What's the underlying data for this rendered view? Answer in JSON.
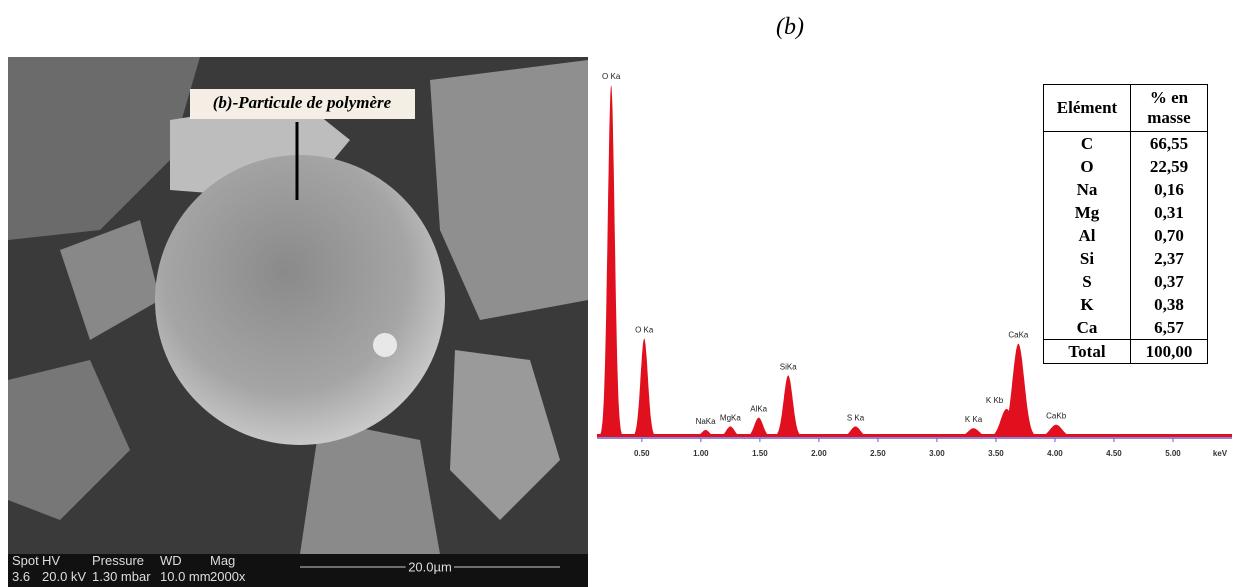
{
  "caption": "(b)",
  "sem": {
    "label": "(b)-Particule de polymère",
    "info_headers": [
      "Spot",
      "HV",
      "Pressure",
      "WD",
      "Mag"
    ],
    "info_values": [
      "3.6",
      "20.0 kV",
      "1.30  mbar",
      "10.0 mm",
      "2000x"
    ],
    "scale": "20.0µm"
  },
  "chart_data": {
    "type": "spectrum",
    "x_label": "keV",
    "color": "#e0101e",
    "xlim": [
      0.12,
      5.5
    ],
    "ylim": [
      0,
      100
    ],
    "xticks": [
      {
        "value": 0.5,
        "label": "0.50"
      },
      {
        "value": 1,
        "label": "1.00"
      },
      {
        "value": 1.5,
        "label": "1.50"
      },
      {
        "value": 2,
        "label": "2.00"
      },
      {
        "value": 2.5,
        "label": "2.50"
      },
      {
        "value": 3,
        "label": "3.00"
      },
      {
        "value": 3.5,
        "label": "3.50"
      },
      {
        "value": 4,
        "label": "4.00"
      },
      {
        "value": 4.5,
        "label": "4.50"
      },
      {
        "value": 5,
        "label": "5.00"
      }
    ],
    "peaks": [
      {
        "label": "O Ka",
        "x": 0.24,
        "height": 100
      },
      {
        "label": "O Ka",
        "x": 0.52,
        "height": 28
      },
      {
        "label": "NaKa",
        "x": 1.04,
        "height": 2
      },
      {
        "label": "MgKa",
        "x": 1.25,
        "height": 3
      },
      {
        "label": "AlKa",
        "x": 1.49,
        "height": 5.5
      },
      {
        "label": "SiKa",
        "x": 1.74,
        "height": 17.5
      },
      {
        "label": "S Ka",
        "x": 2.31,
        "height": 3
      },
      {
        "label": "K Ka",
        "x": 3.31,
        "height": 2.5
      },
      {
        "label": "K Kb",
        "x": 3.59,
        "height": 8
      },
      {
        "label": "CaKa",
        "x": 3.69,
        "height": 26.5
      },
      {
        "label": "CaKb",
        "x": 4.01,
        "height": 3.5
      }
    ]
  },
  "table": {
    "header": [
      "Elément",
      "% en masse"
    ],
    "rows": [
      [
        "C",
        "66,55"
      ],
      [
        "O",
        "22,59"
      ],
      [
        "Na",
        "0,16"
      ],
      [
        "Mg",
        "0,31"
      ],
      [
        "Al",
        "0,70"
      ],
      [
        "Si",
        "2,37"
      ],
      [
        "S",
        "0,37"
      ],
      [
        "K",
        "0,38"
      ],
      [
        "Ca",
        "6,57"
      ]
    ],
    "total": [
      "Total",
      "100,00"
    ]
  }
}
